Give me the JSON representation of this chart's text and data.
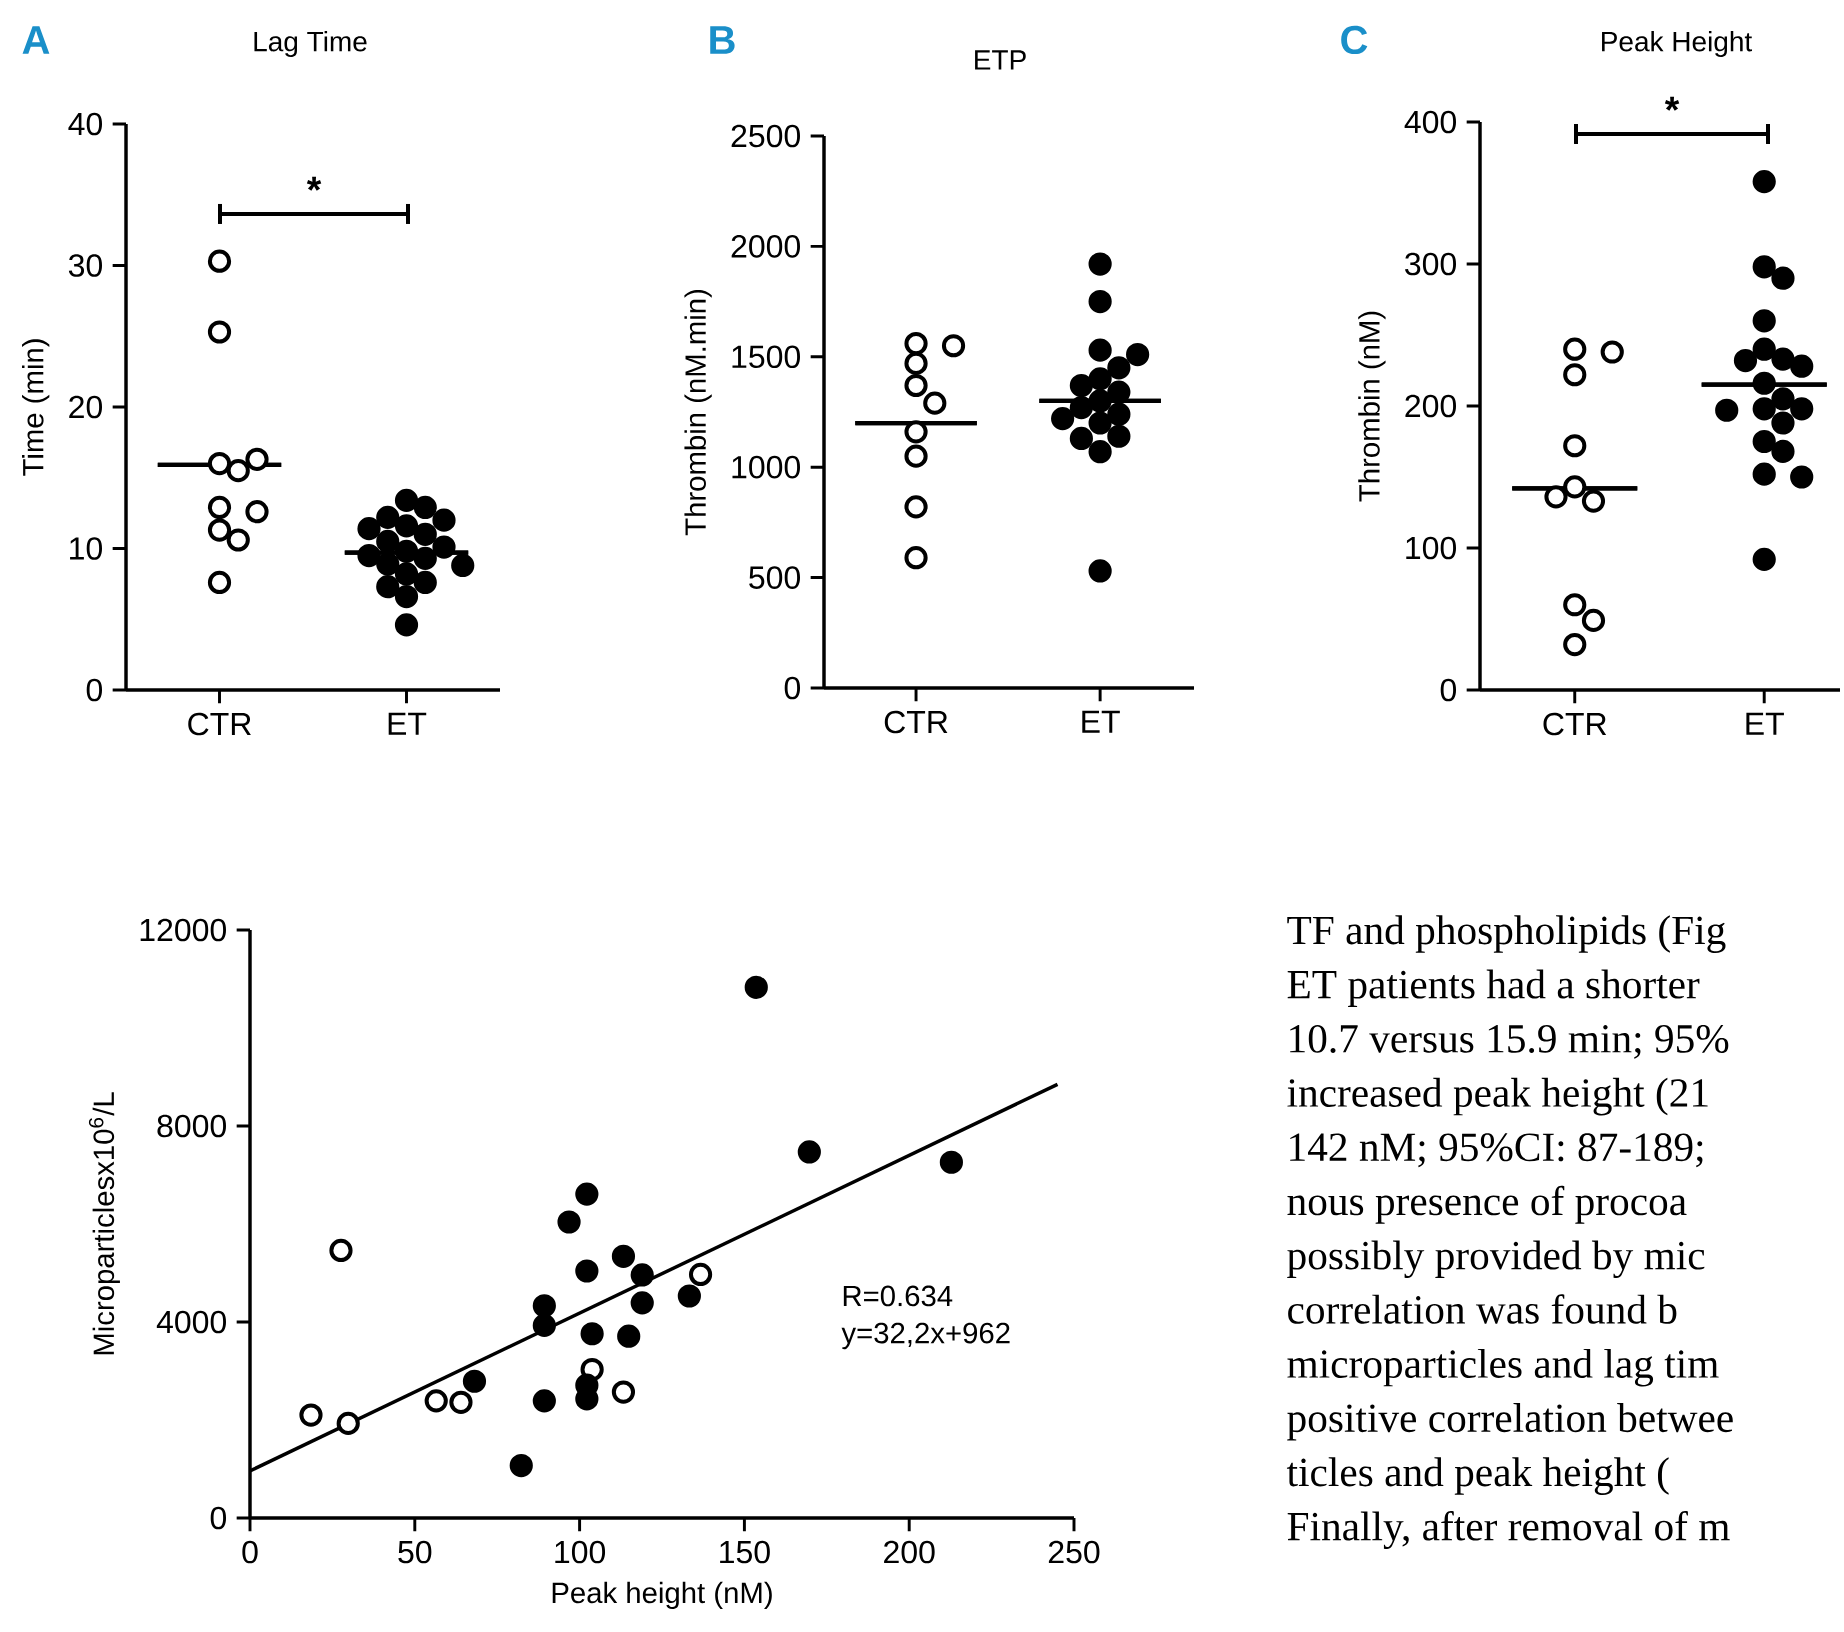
{
  "chart_data": [
    {
      "type": "scatter",
      "title": "Lag Time",
      "ylabel": "Time (min)",
      "categories": [
        "CTR",
        "ET"
      ],
      "ylim": [
        0,
        40
      ],
      "yticks": [
        0,
        10,
        20,
        30,
        40
      ],
      "annotations": [
        "A",
        "*"
      ],
      "series": [
        {
          "color": "#ffffff",
          "marker": "circle",
          "x": [
            "CTR",
            "CTR",
            "CTR",
            "CTR",
            "CTR",
            "CTR",
            "CTR",
            "CTR",
            "CTR",
            "CTR"
          ],
          "values": [
            30.3,
            25.3,
            16.0,
            15.5,
            16.3,
            12.9,
            12.6,
            11.3,
            10.6,
            7.6
          ]
        },
        {
          "color": "#000000",
          "marker": "circle",
          "x": [
            "ET",
            "ET",
            "ET",
            "ET",
            "ET",
            "ET",
            "ET",
            "ET",
            "ET",
            "ET",
            "ET",
            "ET",
            "ET",
            "ET",
            "ET",
            "ET",
            "ET",
            "ET",
            "ET"
          ],
          "values": [
            13.4,
            12.9,
            12.2,
            12.0,
            11.6,
            11.4,
            11.0,
            10.5,
            10.1,
            9.8,
            9.5,
            9.3,
            8.9,
            8.8,
            8.2,
            7.6,
            7.3,
            6.6,
            4.6
          ]
        },
        {
          "type": "box",
          "color": "#000000",
          "boxes": [
            {
              "low": 15.9,
              "q1": 15.9,
              "median": 15.9,
              "q3": 15.9,
              "high": 15.9
            },
            {
              "low": 9.7,
              "q1": 9.7,
              "median": 9.7,
              "q3": 9.7,
              "high": 9.7
            }
          ]
        }
      ]
    },
    {
      "type": "scatter",
      "title": "ETP",
      "ylabel": "Thrombin (nM.min)",
      "categories": [
        "CTR",
        "ET"
      ],
      "ylim": [
        0,
        2500
      ],
      "yticks": [
        0,
        500,
        1000,
        1500,
        2000,
        2500
      ],
      "annotations": [
        "B"
      ],
      "series": [
        {
          "color": "#ffffff",
          "marker": "circle",
          "x": [
            "CTR",
            "CTR",
            "CTR",
            "CTR",
            "CTR",
            "CTR",
            "CTR",
            "CTR",
            "CTR"
          ],
          "values": [
            1560,
            1550,
            1470,
            1370,
            1290,
            1160,
            1050,
            820,
            590
          ]
        },
        {
          "color": "#000000",
          "marker": "circle",
          "x": [
            "ET",
            "ET",
            "ET",
            "ET",
            "ET",
            "ET",
            "ET",
            "ET",
            "ET",
            "ET",
            "ET",
            "ET",
            "ET",
            "ET",
            "ET",
            "ET",
            "ET"
          ],
          "values": [
            1920,
            1750,
            1530,
            1510,
            1450,
            1400,
            1370,
            1340,
            1300,
            1270,
            1240,
            1220,
            1200,
            1140,
            1130,
            1070,
            530
          ]
        },
        {
          "type": "box",
          "color": "#000000",
          "boxes": [
            {
              "low": 1200,
              "q1": 1200,
              "median": 1200,
              "q3": 1200,
              "high": 1200
            },
            {
              "low": 1300,
              "q1": 1300,
              "median": 1300,
              "q3": 1300,
              "high": 1300
            }
          ]
        }
      ]
    },
    {
      "type": "scatter",
      "title": "Peak Height",
      "ylabel": "Thrombin (nM)",
      "categories": [
        "CTR",
        "ET"
      ],
      "ylim": [
        0,
        400
      ],
      "yticks": [
        0,
        100,
        200,
        300,
        400
      ],
      "annotations": [
        "C",
        "*"
      ],
      "series": [
        {
          "color": "#ffffff",
          "marker": "circle",
          "x": [
            "CTR",
            "CTR",
            "CTR",
            "CTR",
            "CTR",
            "CTR",
            "CTR",
            "CTR",
            "CTR",
            "CTR"
          ],
          "values": [
            240,
            238,
            222,
            172,
            143,
            133,
            136,
            60,
            49,
            32
          ]
        },
        {
          "color": "#000000",
          "marker": "circle",
          "x": [
            "ET",
            "ET",
            "ET",
            "ET",
            "ET",
            "ET",
            "ET",
            "ET",
            "ET",
            "ET",
            "ET",
            "ET",
            "ET",
            "ET",
            "ET",
            "ET",
            "ET",
            "ET",
            "ET"
          ],
          "values": [
            358,
            298,
            290,
            260,
            240,
            233,
            232,
            228,
            216,
            205,
            198,
            198,
            197,
            188,
            175,
            168,
            152,
            150,
            92
          ]
        },
        {
          "type": "box",
          "color": "#000000",
          "boxes": [
            {
              "low": 142,
              "q1": 142,
              "median": 142,
              "q3": 142,
              "high": 142
            },
            {
              "low": 215,
              "q1": 215,
              "median": 215,
              "q3": 215,
              "high": 215
            }
          ]
        }
      ]
    },
    {
      "type": "scatter",
      "xlabel": "Peak height (nM)",
      "ylabel": "Microparticlesx10$^{6}$/L",
      "xlim": [
        0,
        250
      ],
      "xticks": [
        0,
        50,
        100,
        150,
        200,
        250
      ],
      "ylim": [
        0,
        12000
      ],
      "yticks": [
        0,
        4000,
        8000,
        12000
      ],
      "annotations": [
        "R=0.634",
        "y=32,2x+962"
      ],
      "series": [
        {
          "color": "#ffffff",
          "marker": "circle",
          "x": [
            18.5,
            27.6,
            29.8,
            56.5,
            64,
            103.8,
            113.3,
            136.7
          ],
          "values": [
            2100,
            5460,
            1930,
            2390,
            2360,
            3030,
            2570,
            4970
          ]
        },
        {
          "color": "#000000",
          "marker": "circle",
          "x": [
            68.1,
            82.3,
            89.3,
            89.3,
            89.3,
            96.8,
            102.2,
            102.2,
            103.8,
            102.2,
            102.2,
            113.3,
            114.9,
            119,
            119,
            133.3,
            153.6,
            169.7,
            212.8
          ],
          "values": [
            2790,
            1070,
            4330,
            3930,
            2390,
            6040,
            6610,
            5040,
            3760,
            2710,
            2430,
            5340,
            3710,
            4960,
            4390,
            4530,
            10830,
            7470,
            7260
          ]
        },
        {
          "type": "line",
          "color": "#000000",
          "x": [
            0,
            245
          ],
          "values": [
            960,
            8850
          ]
        }
      ]
    },
    {
      "type": "other",
      "annotations": [
        "TF and phospholipids (Fig",
        "ET patients had a shorter",
        "10.7 versus 15.9 min; 95%",
        "increased peak height (21",
        "142 nM; 95%CI: 87-189;",
        "nous presence of procoa",
        "possibly provided by mic",
        "correlation was found b",
        "microparticles and lag tim",
        "positive correlation betwee",
        "ticles and peak height (",
        "Finally, after removal of m"
      ]
    }
  ]
}
